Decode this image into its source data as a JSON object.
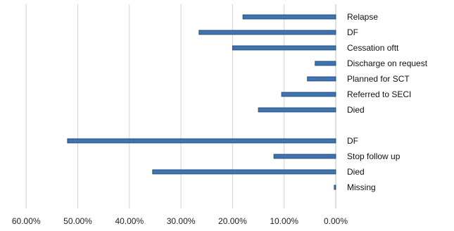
{
  "chart_data": {
    "type": "bar",
    "orientation": "horizontal",
    "x_direction": "reversed",
    "xlim": [
      0,
      60
    ],
    "x_ticks": [
      "60.00%",
      "50.00%",
      "40.00%",
      "30.00%",
      "20.00%",
      "10.00%",
      "0.00%"
    ],
    "x_tick_values": [
      60,
      50,
      40,
      30,
      20,
      10,
      0
    ],
    "grid": true,
    "grid_axis": "x",
    "bar_color": "#3f74b3",
    "bar_edge_color": "#1f3f66",
    "categories": [
      "Relapse",
      "DF",
      "Cessation oftt",
      "Discharge on request",
      "Planned for SCT",
      "Referred to SECI",
      "Died",
      "",
      "DF",
      "Stop follow up",
      "Died",
      "Missing"
    ],
    "values": [
      18.0,
      26.5,
      20.0,
      4.0,
      5.5,
      10.5,
      15.0,
      null,
      52.0,
      12.0,
      35.5,
      0.3
    ]
  }
}
